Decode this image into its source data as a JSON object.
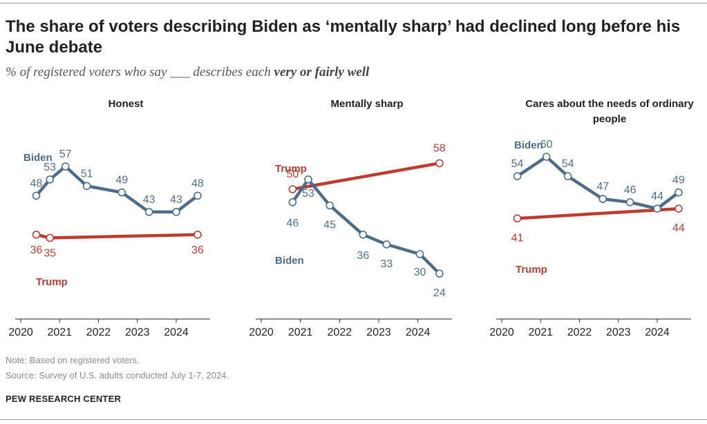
{
  "title": "The share of voters describing Biden as ‘mentally sharp’ had declined long before his June debate",
  "subtitle": {
    "prefix": "% of registered voters who say ___ describes each ",
    "emphasis": "very or fairly well"
  },
  "colors": {
    "biden": "#4a6e8a",
    "trump": "#bf3b2f",
    "axis": "#222222",
    "tick_text": "#222222"
  },
  "chart_data": [
    {
      "type": "line",
      "title": "Honest",
      "xlim": [
        2020,
        2024.8
      ],
      "ylim": [
        10,
        70
      ],
      "ticks": [
        2020,
        2021,
        2022,
        2023,
        2024
      ],
      "series": [
        {
          "name": "Biden",
          "x": [
            2020.4,
            2020.75,
            2021.15,
            2021.7,
            2022.6,
            2023.3,
            2024.0,
            2024.55
          ],
          "values": [
            48,
            53,
            57,
            51,
            49,
            43,
            43,
            48
          ],
          "labels": [
            "48",
            "53",
            "57",
            "51",
            "49",
            "43",
            "43",
            "48"
          ],
          "legend_pos": "upper-left"
        },
        {
          "name": "Trump",
          "x": [
            2020.4,
            2020.75,
            2024.55
          ],
          "values": [
            36,
            35,
            36
          ],
          "labels": [
            "36",
            "35",
            "36"
          ],
          "legend_pos": "lower-left"
        }
      ]
    },
    {
      "type": "line",
      "title": "Mentally sharp",
      "xlim": [
        2020,
        2024.8
      ],
      "ylim": [
        10,
        70
      ],
      "ticks": [
        2020,
        2021,
        2022,
        2023,
        2024
      ],
      "series": [
        {
          "name": "Biden",
          "x": [
            2020.8,
            2021.2,
            2021.75,
            2022.6,
            2023.2,
            2024.05,
            2024.55
          ],
          "values": [
            46,
            53,
            45,
            36,
            33,
            30,
            24
          ],
          "labels": [
            "46",
            "53",
            "45",
            "36",
            "33",
            "30",
            "24"
          ],
          "legend_pos": "lower-left"
        },
        {
          "name": "Trump",
          "x": [
            2020.8,
            2024.55
          ],
          "values": [
            50,
            58
          ],
          "labels": [
            "50",
            "58"
          ],
          "legend_pos": "upper-left"
        }
      ]
    },
    {
      "type": "line",
      "title": "Cares about the needs of ordinary people",
      "xlim": [
        2020,
        2024.8
      ],
      "ylim": [
        10,
        70
      ],
      "ticks": [
        2020,
        2021,
        2022,
        2023,
        2024
      ],
      "series": [
        {
          "name": "Biden",
          "x": [
            2020.4,
            2021.15,
            2021.7,
            2022.6,
            2023.3,
            2024.0,
            2024.55
          ],
          "values": [
            54,
            60,
            54,
            47,
            46,
            44,
            49
          ],
          "labels": [
            "54",
            "60",
            "54",
            "47",
            "46",
            "44",
            "49"
          ],
          "legend_pos": "upper-left"
        },
        {
          "name": "Trump",
          "x": [
            2020.4,
            2024.55
          ],
          "values": [
            41,
            44
          ],
          "labels": [
            "41",
            "44"
          ],
          "legend_pos": "lower-left"
        }
      ]
    }
  ],
  "footer": {
    "note": "Note: Based on registered voters.",
    "source": "Source: Survey of U.S. adults conducted July 1-7, 2024.",
    "brand": "PEW RESEARCH CENTER"
  }
}
